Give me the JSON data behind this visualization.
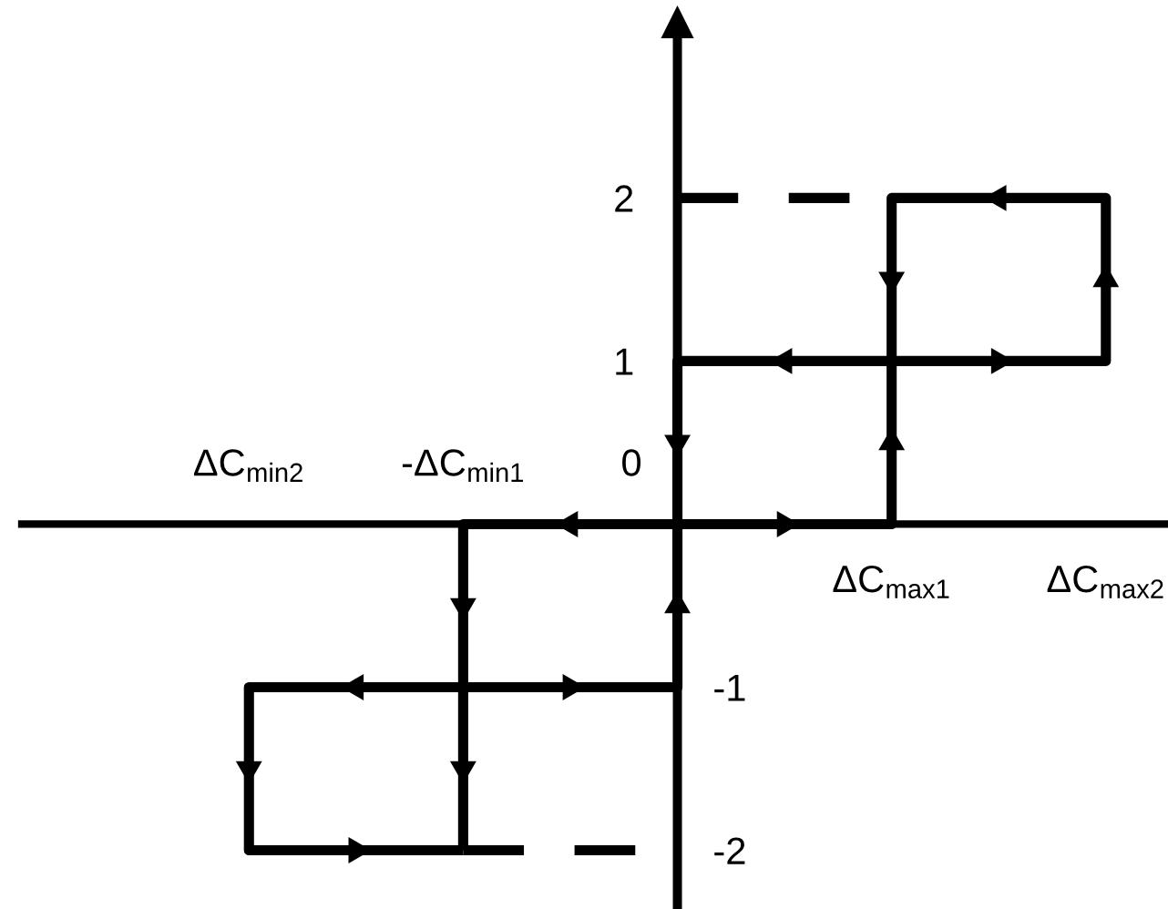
{
  "chart_data": {
    "type": "line",
    "categories": [
      "ΔC$_{min2}$",
      "-ΔC$_{min1}$",
      "0",
      "ΔC$_{max1}$",
      "ΔC$_{max2}$"
    ],
    "ylim": [
      -2.36,
      3.08
    ],
    "yticks": [
      1,
      2
    ],
    "y2lim": [
      -2.36,
      3.08
    ],
    "y2ticks": [
      -2,
      -1
    ],
    "ref_lines": [
      {
        "axis": "x",
        "value": "0",
        "color": "#000000",
        "line_style": "solid"
      }
    ],
    "series": [
      {
        "color": "#000000",
        "line_style": "solid",
        "x": [
          "0",
          "ΔC$_{max1}$",
          "ΔC$_{max1}$",
          "ΔC$_{max2}$",
          "ΔC$_{max2}$",
          "ΔC$_{max1}$",
          "ΔC$_{max1}$",
          "0",
          "0",
          "-ΔC$_{min1}$",
          "-ΔC$_{min1}$",
          "ΔC$_{min2}$",
          "ΔC$_{min2}$",
          "-ΔC$_{min1}$",
          null,
          "-ΔC$_{min1}$",
          "-ΔC$_{min1}$",
          null,
          "-ΔC$_{min1}$",
          "0",
          "0"
        ],
        "values": [
          0,
          0,
          1,
          1,
          2,
          2,
          1,
          1,
          0,
          0,
          -1,
          -1,
          -2,
          -2,
          null,
          -1,
          -2,
          null,
          -1,
          -1,
          0
        ]
      },
      {
        "color": "#000000",
        "line_style": "dashed",
        "x": [
          "0",
          "ΔC$_{max1}$"
        ],
        "values": [
          2,
          2
        ]
      },
      {
        "color": "#000000",
        "line_style": "dashed",
        "x": [
          "-ΔC$_{min1}$",
          "0"
        ],
        "values": [
          -2,
          -2
        ]
      }
    ]
  }
}
